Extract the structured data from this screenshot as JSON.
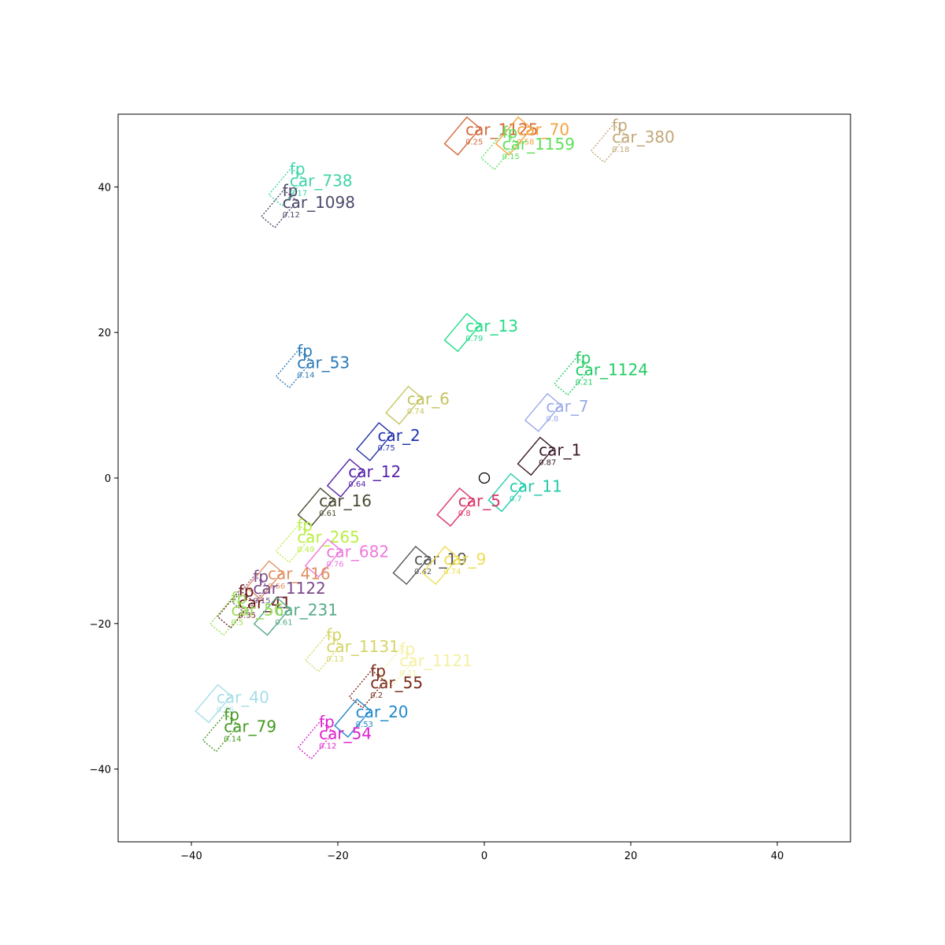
{
  "chart_data": {
    "type": "scatter",
    "title": "",
    "xlabel": "",
    "ylabel": "",
    "xlim": [
      -50,
      50
    ],
    "ylim": [
      -50,
      50
    ],
    "xticks": [
      -40,
      -20,
      0,
      20,
      40
    ],
    "yticks": [
      -40,
      -20,
      0,
      20,
      40
    ],
    "xtick_labels": [
      "−40",
      "−20",
      "0",
      "20",
      "40"
    ],
    "ytick_labels": [
      "−40",
      "−20",
      "0",
      "20",
      "40"
    ],
    "grid": false,
    "ego_marker": {
      "x": 0,
      "y": 0
    },
    "objects": [
      {
        "label": "car_1125",
        "score": "0.25",
        "false_positive": false,
        "x": -3,
        "y": 47,
        "color": "#d2693c"
      },
      {
        "label": "car_70",
        "score": "0.58",
        "false_positive": false,
        "x": 4,
        "y": 47,
        "color": "#f4a340"
      },
      {
        "label": "car_1159",
        "score": "0.15",
        "false_positive": true,
        "x": 2,
        "y": 45,
        "color": "#5fe05a"
      },
      {
        "label": "car_380",
        "score": "0.18",
        "false_positive": true,
        "x": 17,
        "y": 46,
        "color": "#c2a878"
      },
      {
        "label": "car_738",
        "score": "0.17",
        "false_positive": true,
        "x": -27,
        "y": 40,
        "color": "#3fd4a8"
      },
      {
        "label": "car_1098",
        "score": "0.12",
        "false_positive": true,
        "x": -28,
        "y": 37,
        "color": "#4a4a6a"
      },
      {
        "label": "car_13",
        "score": "0.79",
        "false_positive": false,
        "x": -3,
        "y": 20,
        "color": "#22dd88"
      },
      {
        "label": "car_53",
        "score": "0.14",
        "false_positive": true,
        "x": -26,
        "y": 15,
        "color": "#2a7ab8"
      },
      {
        "label": "car_1124",
        "score": "0.21",
        "false_positive": true,
        "x": 12,
        "y": 14,
        "color": "#22cc66"
      },
      {
        "label": "car_6",
        "score": "0.74",
        "false_positive": false,
        "x": -11,
        "y": 10,
        "color": "#c4c460"
      },
      {
        "label": "car_7",
        "score": "0.8",
        "false_positive": false,
        "x": 8,
        "y": 9,
        "color": "#9aaae8"
      },
      {
        "label": "car_2",
        "score": "0.75",
        "false_positive": false,
        "x": -15,
        "y": 5,
        "color": "#2233aa"
      },
      {
        "label": "car_1",
        "score": "0.87",
        "false_positive": false,
        "x": 7,
        "y": 3,
        "color": "#3a1a2a"
      },
      {
        "label": "car_12",
        "score": "0.64",
        "false_positive": false,
        "x": -19,
        "y": 0,
        "color": "#5522aa"
      },
      {
        "label": "car_11",
        "score": "0.7",
        "false_positive": false,
        "x": 3,
        "y": -2,
        "color": "#22ccaa"
      },
      {
        "label": "car_5",
        "score": "0.8",
        "false_positive": false,
        "x": -4,
        "y": -4,
        "color": "#dd3366"
      },
      {
        "label": "car_16",
        "score": "0.61",
        "false_positive": false,
        "x": -23,
        "y": -4,
        "color": "#4a4a32"
      },
      {
        "label": "car_265",
        "score": "0.49",
        "false_positive": true,
        "x": -26,
        "y": -9,
        "color": "#bbee44"
      },
      {
        "label": "car_682",
        "score": "0.76",
        "false_positive": false,
        "x": -22,
        "y": -11,
        "color": "#ee77dd"
      },
      {
        "label": "car_19",
        "score": "0.42",
        "false_positive": false,
        "x": -10,
        "y": -12,
        "color": "#555555"
      },
      {
        "label": "car_9",
        "score": "0.74",
        "false_positive": false,
        "x": -6,
        "y": -12,
        "color": "#eedd55"
      },
      {
        "label": "car_416",
        "score": "0.66",
        "false_positive": false,
        "x": -30,
        "y": -14,
        "color": "#e09060"
      },
      {
        "label": "car_1122",
        "score": "0.15",
        "false_positive": true,
        "x": -32,
        "y": -16,
        "color": "#7a4a8a"
      },
      {
        "label": "car_41",
        "score": "0.35",
        "false_positive": true,
        "x": -34,
        "y": -18,
        "color": "#6a1a1a"
      },
      {
        "label": "car_231",
        "score": "0.61",
        "false_positive": false,
        "x": -29,
        "y": -19,
        "color": "#55aa88"
      },
      {
        "label": "car_56",
        "score": "0.5",
        "false_positive": true,
        "x": -35,
        "y": -19,
        "color": "#99dd55"
      },
      {
        "label": "car_1131",
        "score": "0.13",
        "false_positive": true,
        "x": -22,
        "y": -24,
        "color": "#d4d466"
      },
      {
        "label": "car_1121",
        "score": "0.11",
        "false_positive": true,
        "x": -12,
        "y": -26,
        "color": "#f4f0a0"
      },
      {
        "label": "car_55",
        "score": "0.2",
        "false_positive": true,
        "x": -16,
        "y": -29,
        "color": "#7a2a1a"
      },
      {
        "label": "car_40",
        "score": "0.76",
        "false_positive": false,
        "x": -37,
        "y": -31,
        "color": "#a8dde8"
      },
      {
        "label": "car_20",
        "score": "0.53",
        "false_positive": false,
        "x": -18,
        "y": -33,
        "color": "#2288cc"
      },
      {
        "label": "car_79",
        "score": "0.14",
        "false_positive": true,
        "x": -36,
        "y": -35,
        "color": "#449922"
      },
      {
        "label": "car_54",
        "score": "0.12",
        "false_positive": true,
        "x": -23,
        "y": -36,
        "color": "#dd22cc"
      }
    ]
  }
}
